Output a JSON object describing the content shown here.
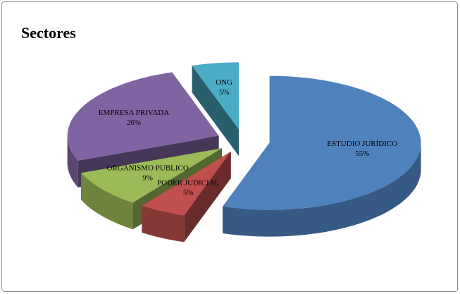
{
  "chart_data": {
    "type": "pie",
    "title": "Sectores",
    "categories": [
      "ESTUDIO JURÍDICO",
      "PODER JUDICIAL",
      "ORGANISMO PUBLICO",
      "EMPRESA PRIVADA",
      "ONG"
    ],
    "values": [
      55,
      5,
      9,
      26,
      5
    ],
    "value_labels": [
      "55%",
      "5%",
      "9%",
      "26%",
      "5%"
    ],
    "colors": [
      "#4f81bd",
      "#c0504d",
      "#9bbb59",
      "#8064a2",
      "#4bacc6"
    ]
  }
}
